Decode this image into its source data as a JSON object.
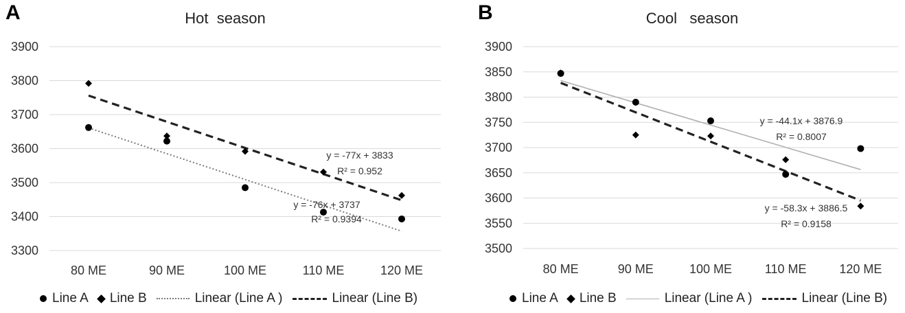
{
  "chart_data": [
    {
      "type": "scatter",
      "panel_label": "A",
      "title": "Hot  season",
      "categories": [
        "80 ME",
        "90 ME",
        "100 ME",
        "110 ME",
        "120 ME"
      ],
      "ylim": [
        3300,
        3900
      ],
      "yticks": [
        "3300",
        "3400",
        "3500",
        "3600",
        "3700",
        "3800",
        "3900"
      ],
      "grid": true,
      "legend_position": "bottom",
      "series": [
        {
          "name": "Line A",
          "marker": "circle",
          "values": [
            3662,
            3622,
            3485,
            3413,
            3393
          ]
        },
        {
          "name": "Line B",
          "marker": "diamond",
          "values": [
            3792,
            3637,
            3592,
            3531,
            3462
          ]
        }
      ],
      "trendlines": [
        {
          "name": "Linear (Line A )",
          "style": "dotted",
          "slope": -76,
          "intercept": 3737,
          "equation": "y = -76x + 3737",
          "r2": "R² = 0.9394"
        },
        {
          "name": "Linear (Line B)",
          "style": "dashed",
          "slope": -77,
          "intercept": 3833,
          "equation": "y = -77x + 3833",
          "r2": "R² = 0.952"
        }
      ],
      "legend": [
        "Line A",
        "Line B",
        "Linear (Line A )",
        "Linear (Line B)"
      ]
    },
    {
      "type": "scatter",
      "panel_label": "B",
      "title": "Cool   season",
      "categories": [
        "80 ME",
        "90 ME",
        "100 ME",
        "110 ME",
        "120 ME"
      ],
      "ylim": [
        3500,
        3900
      ],
      "yticks": [
        "3500",
        "3550",
        "3600",
        "3650",
        "3700",
        "3750",
        "3800",
        "3850",
        "3900"
      ],
      "grid": true,
      "legend_position": "bottom",
      "series": [
        {
          "name": "Line A",
          "marker": "circle",
          "values": [
            3847,
            3790,
            3753,
            3647,
            3698
          ]
        },
        {
          "name": "Line B",
          "marker": "diamond",
          "values": [
            3848,
            3725,
            3723,
            3676,
            3584
          ]
        }
      ],
      "trendlines": [
        {
          "name": "Linear (Line A )",
          "style": "solid-light",
          "slope": -44.1,
          "intercept": 3876.9,
          "equation": "y = -44.1x + 3876.9",
          "r2": "R² = 0.8007"
        },
        {
          "name": "Linear (Line B)",
          "style": "dashed",
          "slope": -58.3,
          "intercept": 3886.5,
          "equation": "y = -58.3x + 3886.5",
          "r2": "R² = 0.9158"
        }
      ],
      "legend": [
        "Line A",
        "Line B",
        "Linear (Line A )",
        "Linear (Line B)"
      ]
    }
  ]
}
